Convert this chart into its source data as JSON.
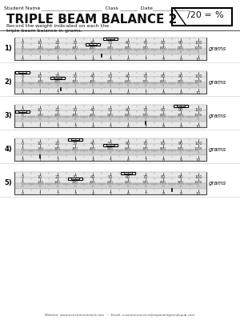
{
  "title": "TRIPLE BEAM BALANCE 2",
  "subtitle": "Record the weight indicated on each the\ntriple beam balance in grams.",
  "score_box": "/20 =    %",
  "header": "Student Name ________________________  Class _______  Date_______________",
  "problems": [
    {
      "number": 1,
      "rider1": 50,
      "rider2": 400,
      "rider3": 4.5
    },
    {
      "number": 2,
      "rider1": 0,
      "rider2": 200,
      "rider3": 2.2
    },
    {
      "number": 3,
      "rider1": 90,
      "rider2": 0,
      "rider3": 7.0
    },
    {
      "number": 4,
      "rider1": 30,
      "rider2": 500,
      "rider3": 1.0
    },
    {
      "number": 5,
      "rider1": 60,
      "rider2": 300,
      "rider3": 8.5
    }
  ],
  "bg_color": "#ffffff",
  "beam_bg": "#e8e8e8",
  "beam_border": "#555555",
  "rider_color": "#111111",
  "text_color": "#111111",
  "footer": "Website: www.activitiestoteach.com  ~  Email: customerservice@expandingmindspub.com"
}
